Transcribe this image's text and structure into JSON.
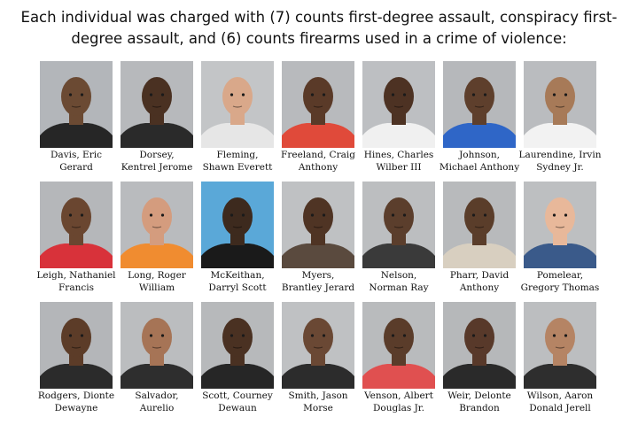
{
  "headline": {
    "line1": "Each individual was charged with (7) counts first-degree assault, conspiracy first-",
    "line2": "degree assault, and (6) counts firearms used in a crime of violence:"
  },
  "people": [
    {
      "name1": "Davis, Eric",
      "name2": "Gerard",
      "skin": "#6b4a33",
      "shirt": "#262626",
      "bg": "#b3b6ba"
    },
    {
      "name1": "Dorsey,",
      "name2": "Kentrel Jerome",
      "skin": "#4a3122",
      "shirt": "#2a2a2a",
      "bg": "#b7b9bc"
    },
    {
      "name1": "Fleming,",
      "name2": "Shawn Everett",
      "skin": "#d9a88a",
      "shirt": "#e6e6e6",
      "bg": "#c3c5c7"
    },
    {
      "name1": "Freeland, Craig",
      "name2": "Anthony",
      "skin": "#5a3a28",
      "shirt": "#e04a3a",
      "bg": "#b8babd"
    },
    {
      "name1": "Hines, Charles",
      "name2": "Wilber III",
      "skin": "#4d3223",
      "shirt": "#f0f0f0",
      "bg": "#bdbfc2"
    },
    {
      "name1": "Johnson,",
      "name2": "Michael Anthony",
      "skin": "#5e3f2c",
      "shirt": "#2f66c7",
      "bg": "#b6b8bb"
    },
    {
      "name1": "Laurendine, Irvin",
      "name2": "Sydney Jr.",
      "skin": "#a77a58",
      "shirt": "#f2f2f2",
      "bg": "#babcbf"
    },
    {
      "name1": "Leigh, Nathaniel",
      "name2": "Francis",
      "skin": "#6a4630",
      "shirt": "#d8323a",
      "bg": "#b5b7ba"
    },
    {
      "name1": "Long, Roger",
      "name2": "William",
      "skin": "#d49c7e",
      "shirt": "#f08c30",
      "bg": "#b9bbbe"
    },
    {
      "name1": "McKeithan,",
      "name2": "Darryl Scott",
      "skin": "#3d2a1e",
      "shirt": "#1a1a1a",
      "bg": "#5aa8d8"
    },
    {
      "name1": "Myers,",
      "name2": "Brantley Jerard",
      "skin": "#4f3424",
      "shirt": "#5a4a3e",
      "bg": "#bfc1c3"
    },
    {
      "name1": "Nelson,",
      "name2": "Norman Ray",
      "skin": "#5b3e2c",
      "shirt": "#3a3a3a",
      "bg": "#bcbec0"
    },
    {
      "name1": "Pharr, David",
      "name2": "Anthony",
      "skin": "#5a3d2a",
      "shirt": "#d8cfc0",
      "bg": "#b8babc"
    },
    {
      "name1": "Pomelear,",
      "name2": "Gregory Thomas",
      "skin": "#e8b89a",
      "shirt": "#3a5a8a",
      "bg": "#bdbfc1"
    },
    {
      "name1": "Rodgers, Dionte",
      "name2": "Dewayne",
      "skin": "#5c3c28",
      "shirt": "#2b2b2b",
      "bg": "#b4b6b9"
    },
    {
      "name1": "Salvador,",
      "name2": "Aurelio",
      "skin": "#a67456",
      "shirt": "#2e2e2e",
      "bg": "#bbbdbf"
    },
    {
      "name1": "Scott, Courney",
      "name2": "Dewaun",
      "skin": "#4a3122",
      "shirt": "#262626",
      "bg": "#b7b9bb"
    },
    {
      "name1": "Smith, Jason",
      "name2": "Morse",
      "skin": "#6a4834",
      "shirt": "#2c2c2c",
      "bg": "#bfc1c3"
    },
    {
      "name1": "Venson, Albert",
      "name2": "Douglas Jr.",
      "skin": "#5a3c2a",
      "shirt": "#e05050",
      "bg": "#b9bbbd"
    },
    {
      "name1": "Weir, Delonte",
      "name2": "Brandon",
      "skin": "#58392a",
      "shirt": "#2a2a2a",
      "bg": "#b6b8ba"
    },
    {
      "name1": "Wilson, Aaron",
      "name2": "Donald Jerell",
      "skin": "#b58464",
      "shirt": "#2e2e2e",
      "bg": "#bcbec0"
    }
  ]
}
